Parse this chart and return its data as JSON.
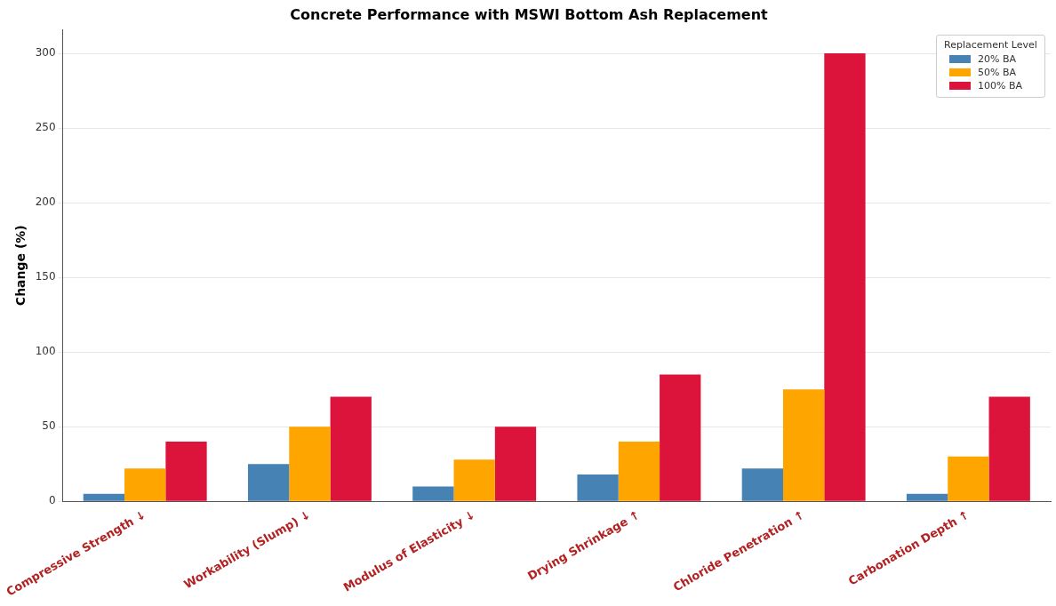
{
  "chart_data": {
    "type": "bar",
    "title": "Concrete Performance with MSWI Bottom Ash Replacement",
    "ylabel": "Change (%)",
    "legend_title": "Replacement Level",
    "categories": [
      "Compressive Strength ↓",
      "Workability (Slump) ↓",
      "Modulus of Elasticity ↓",
      "Drying Shrinkage ↑",
      "Chloride Penetration ↑",
      "Carbonation Depth ↑"
    ],
    "series": [
      {
        "name": "20% BA",
        "color": "#4682b4",
        "values": [
          5,
          25,
          10,
          18,
          22,
          5
        ]
      },
      {
        "name": "50% BA",
        "color": "#ffa500",
        "values": [
          22,
          50,
          28,
          40,
          75,
          30
        ]
      },
      {
        "name": "100% BA",
        "color": "#dc143c",
        "values": [
          40,
          70,
          50,
          85,
          300,
          70
        ]
      }
    ],
    "ylim": [
      0,
      316
    ],
    "yticks": [
      0,
      50,
      100,
      150,
      200,
      250,
      300
    ],
    "grid": "y",
    "legend": "top right"
  }
}
